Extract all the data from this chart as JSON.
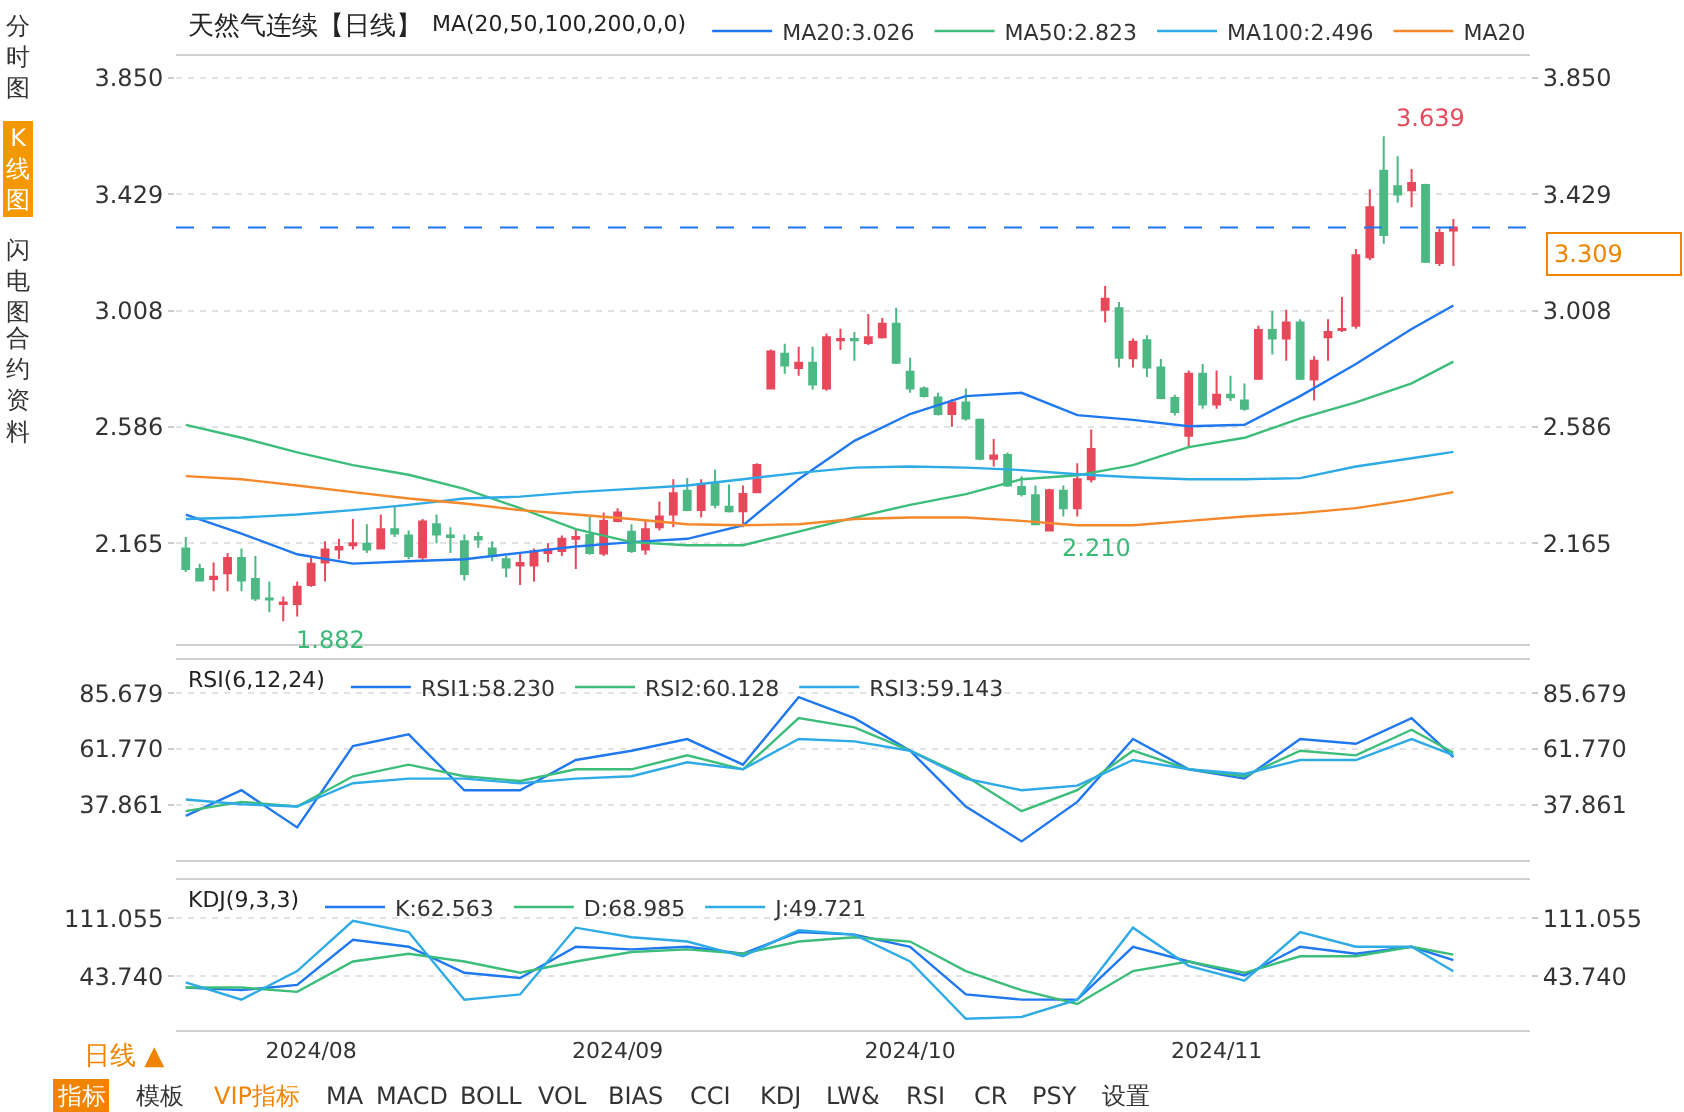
{
  "chart_data": [
    {
      "type": "candlestick",
      "title": "天然气连续【日线】",
      "legend_title": "MA(20,50,100,200,0,0)",
      "legend": "top",
      "grid": "y",
      "tick_labels": "y",
      "categories": [
        null,
        null,
        null,
        null,
        null,
        null,
        null,
        null,
        null,
        null,
        null,
        null,
        null,
        null,
        null,
        null,
        null,
        null,
        null,
        null,
        null,
        null,
        null,
        null,
        null,
        null,
        null,
        null,
        null,
        null,
        null,
        null,
        null,
        null,
        null,
        null,
        null,
        null,
        null,
        null,
        null,
        null,
        null,
        null,
        null,
        null,
        null,
        null,
        null,
        null,
        null,
        null,
        null,
        null,
        null,
        null,
        null,
        null,
        null,
        null,
        null,
        null,
        null,
        null,
        null,
        null,
        null,
        null,
        null,
        null,
        null,
        null,
        null,
        null,
        null,
        null,
        null,
        null,
        null,
        null,
        null,
        null,
        null,
        null,
        null,
        null,
        null,
        null,
        null,
        null,
        null,
        null
      ],
      "ohlc": [
        [
          2.146,
          2.188,
          2.061,
          2.072
        ],
        [
          2.072,
          2.091,
          2.026,
          2.03
        ],
        [
          2.035,
          2.095,
          1.991,
          2.044
        ],
        [
          2.056,
          2.13,
          1.991,
          2.112
        ],
        [
          2.112,
          2.146,
          1.991,
          2.03
        ],
        [
          2.035,
          2.119,
          1.956,
          1.965
        ],
        [
          1.965,
          2.026,
          1.915,
          1.961
        ],
        [
          1.945,
          1.972,
          1.882,
          1.95
        ],
        [
          1.945,
          2.026,
          1.9,
          2.007
        ],
        [
          2.014,
          2.119,
          2.007,
          2.091
        ],
        [
          2.095,
          2.172,
          2.026,
          2.142
        ],
        [
          2.142,
          2.181,
          2.107,
          2.151
        ],
        [
          2.158,
          2.253,
          2.142,
          2.165
        ],
        [
          2.163,
          2.234,
          2.13,
          2.142
        ],
        [
          2.146,
          2.269,
          2.142,
          2.216
        ],
        [
          2.216,
          2.297,
          2.188,
          2.2
        ],
        [
          2.193,
          2.211,
          2.107,
          2.119
        ],
        [
          2.114,
          2.253,
          2.1,
          2.244
        ],
        [
          2.234,
          2.269,
          2.165,
          2.197
        ],
        [
          2.193,
          2.223,
          2.13,
          2.188
        ],
        [
          2.172,
          2.197,
          2.03,
          2.054
        ],
        [
          2.188,
          2.207,
          2.149,
          2.179
        ],
        [
          2.146,
          2.172,
          2.1,
          2.119
        ],
        [
          2.107,
          2.119,
          2.042,
          2.077
        ],
        [
          2.084,
          2.13,
          2.014,
          2.093
        ],
        [
          2.084,
          2.146,
          2.026,
          2.135
        ],
        [
          2.13,
          2.165,
          2.096,
          2.142
        ],
        [
          2.137,
          2.193,
          2.119,
          2.181
        ],
        [
          2.181,
          2.216,
          2.072,
          2.188
        ],
        [
          2.195,
          2.262,
          2.123,
          2.13
        ],
        [
          2.128,
          2.276,
          2.119,
          2.246
        ],
        [
          2.246,
          2.292,
          2.241,
          2.276
        ],
        [
          2.207,
          2.234,
          2.13,
          2.137
        ],
        [
          2.142,
          2.246,
          2.123,
          2.216
        ],
        [
          2.223,
          2.316,
          2.211,
          2.262
        ],
        [
          2.269,
          2.397,
          2.223,
          2.346
        ],
        [
          2.355,
          2.401,
          2.281,
          2.285
        ],
        [
          2.285,
          2.397,
          2.258,
          2.38
        ],
        [
          2.38,
          2.432,
          2.292,
          2.304
        ],
        [
          2.297,
          2.378,
          2.276,
          2.281
        ],
        [
          2.281,
          2.374,
          2.223,
          2.343
        ],
        [
          2.35,
          2.455,
          2.346,
          2.448
        ],
        [
          2.726,
          2.867,
          2.726,
          2.86
        ],
        [
          2.851,
          2.888,
          2.779,
          2.809
        ],
        [
          2.8,
          2.877,
          2.772,
          2.819
        ],
        [
          2.819,
          2.877,
          2.721,
          2.74
        ],
        [
          2.726,
          2.925,
          2.717,
          2.911
        ],
        [
          2.9,
          2.942,
          2.865,
          2.905
        ],
        [
          2.905,
          2.93,
          2.826,
          2.9
        ],
        [
          2.89,
          2.995,
          2.883,
          2.911
        ],
        [
          2.911,
          2.981,
          2.907,
          2.96
        ],
        [
          2.96,
          3.018,
          2.814,
          2.819
        ],
        [
          2.786,
          2.837,
          2.71,
          2.726
        ],
        [
          2.726,
          2.733,
          2.693,
          2.698
        ],
        [
          2.693,
          2.71,
          2.628,
          2.633
        ],
        [
          2.633,
          2.687,
          2.587,
          2.675
        ],
        [
          2.675,
          2.726,
          2.61,
          2.617
        ],
        [
          2.612,
          2.617,
          2.466,
          2.471
        ],
        [
          2.471,
          2.543,
          2.443,
          2.483
        ],
        [
          2.485,
          2.494,
          2.369,
          2.374
        ],
        [
          2.369,
          2.408,
          2.334,
          2.343
        ],
        [
          2.339,
          2.374,
          2.23,
          2.234
        ],
        [
          2.211,
          2.362,
          2.21,
          2.357
        ],
        [
          2.355,
          2.374,
          2.262,
          2.292
        ],
        [
          2.292,
          2.455,
          2.262,
          2.397
        ],
        [
          2.397,
          2.577,
          2.385,
          2.506
        ],
        [
          3.011,
          3.097,
          2.965,
          3.051
        ],
        [
          3.016,
          3.039,
          2.802,
          2.837
        ],
        [
          2.835,
          2.907,
          2.802,
          2.895
        ],
        [
          2.9,
          2.918,
          2.767,
          2.802
        ],
        [
          2.802,
          2.832,
          2.687,
          2.691
        ],
        [
          2.691,
          2.703,
          2.628,
          2.64
        ],
        [
          2.554,
          2.791,
          2.513,
          2.779
        ],
        [
          2.779,
          2.814,
          2.652,
          2.668
        ],
        [
          2.668,
          2.791,
          2.652,
          2.703
        ],
        [
          2.703,
          2.772,
          2.68,
          2.694
        ],
        [
          2.682,
          2.744,
          2.645,
          2.652
        ],
        [
          2.761,
          2.953,
          2.756,
          2.937
        ],
        [
          2.937,
          3.006,
          2.849,
          2.907
        ],
        [
          2.907,
          3.011,
          2.826,
          2.965
        ],
        [
          2.965,
          2.976,
          2.756,
          2.761
        ],
        [
          2.758,
          2.842,
          2.682,
          2.826
        ],
        [
          2.911,
          2.976,
          2.826,
          2.93
        ],
        [
          2.937,
          3.057,
          2.93,
          2.941
        ],
        [
          2.953,
          3.231,
          2.942,
          3.208
        ],
        [
          3.201,
          3.447,
          3.19,
          3.382
        ],
        [
          3.514,
          3.639,
          3.25,
          3.282
        ],
        [
          3.458,
          3.567,
          3.398,
          3.428
        ],
        [
          3.444,
          3.521,
          3.382,
          3.47
        ],
        [
          3.463,
          3.467,
          3.18,
          3.185
        ],
        [
          3.18,
          3.305,
          3.169,
          3.289
        ],
        [
          3.298,
          3.34,
          3.169,
          3.309
        ]
      ],
      "colors": [
        "#4cb884",
        "#4cb884",
        "#e8485a",
        "#e8485a",
        "#4cb884",
        "#4cb884",
        "#4cb884",
        "#e8485a",
        "#e8485a",
        "#e8485a",
        "#e8485a",
        "#e8485a",
        "#e8485a",
        "#4cb884",
        "#e8485a",
        "#4cb884",
        "#4cb884",
        "#e8485a",
        "#4cb884",
        "#4cb884",
        "#4cb884",
        "#4cb884",
        "#4cb884",
        "#4cb884",
        "#e8485a",
        "#e8485a",
        "#e8485a",
        "#e8485a",
        "#e8485a",
        "#4cb884",
        "#e8485a",
        "#e8485a",
        "#4cb884",
        "#e8485a",
        "#e8485a",
        "#e8485a",
        "#4cb884",
        "#e8485a",
        "#4cb884",
        "#4cb884",
        "#e8485a",
        "#e8485a",
        "#e8485a",
        "#4cb884",
        "#e8485a",
        "#4cb884",
        "#e8485a",
        "#e8485a",
        "#4cb884",
        "#e8485a",
        "#e8485a",
        "#4cb884",
        "#4cb884",
        "#4cb884",
        "#4cb884",
        "#e8485a",
        "#4cb884",
        "#4cb884",
        "#e8485a",
        "#4cb884",
        "#4cb884",
        "#4cb884",
        "#e8485a",
        "#4cb884",
        "#e8485a",
        "#e8485a",
        "#e8485a",
        "#4cb884",
        "#e8485a",
        "#4cb884",
        "#4cb884",
        "#4cb884",
        "#e8485a",
        "#4cb884",
        "#e8485a",
        "#4cb884",
        "#4cb884",
        "#e8485a",
        "#4cb884",
        "#e8485a",
        "#4cb884",
        "#e8485a",
        "#e8485a",
        "#e8485a",
        "#e8485a",
        "#e8485a",
        "#4cb884",
        "#4cb884",
        "#e8485a",
        "#4cb884",
        "#e8485a",
        "#e8485a"
      ],
      "series": [
        {
          "type": "line",
          "name": "MA20:3.026",
          "color": "#1f78f0",
          "values": [
            2.269,
            null,
            null,
            null,
            2.2,
            null,
            null,
            null,
            2.125,
            null,
            null,
            null,
            2.091,
            null,
            null,
            null,
            2.1,
            null,
            null,
            null,
            2.107,
            null,
            null,
            null,
            2.13,
            null,
            null,
            null,
            2.153,
            null,
            null,
            null,
            2.169,
            null,
            null,
            null,
            2.181,
            null,
            null,
            null,
            2.23,
            null,
            null,
            null,
            2.397,
            null,
            null,
            null,
            2.536,
            null,
            null,
            null,
            2.633,
            null,
            null,
            null,
            2.698,
            null,
            null,
            null,
            2.71,
            null,
            null,
            null,
            2.629,
            null,
            null,
            null,
            2.612,
            null,
            null,
            null,
            2.589,
            null,
            null,
            null,
            2.594,
            null,
            null,
            null,
            2.698,
            null,
            null,
            null,
            2.814,
            null,
            null,
            null,
            2.941,
            null,
            null,
            3.026
          ]
        },
        {
          "type": "line",
          "name": "MA50:2.823",
          "color": "#3cbd7a",
          "values": [
            2.594,
            null,
            null,
            null,
            2.547,
            null,
            null,
            null,
            2.494,
            null,
            null,
            null,
            2.448,
            null,
            null,
            null,
            2.413,
            null,
            null,
            null,
            2.362,
            null,
            null,
            null,
            2.292,
            null,
            null,
            null,
            2.216,
            null,
            null,
            null,
            2.169,
            null,
            null,
            null,
            2.158,
            null,
            null,
            null,
            2.158,
            null,
            null,
            null,
            2.207,
            null,
            null,
            null,
            2.258,
            null,
            null,
            null,
            2.304,
            null,
            null,
            null,
            2.343,
            null,
            null,
            null,
            2.397,
            null,
            null,
            null,
            2.411,
            null,
            null,
            null,
            2.448,
            null,
            null,
            null,
            2.513,
            null,
            null,
            null,
            2.547,
            null,
            null,
            null,
            2.617,
            null,
            null,
            null,
            2.675,
            null,
            null,
            null,
            2.744,
            null,
            null,
            2.823
          ]
        },
        {
          "type": "line",
          "name": "MA100:2.496",
          "color": "#2eaae6",
          "values": [
            2.253,
            null,
            null,
            null,
            2.258,
            null,
            null,
            null,
            2.269,
            null,
            null,
            null,
            2.285,
            null,
            null,
            null,
            2.304,
            null,
            null,
            null,
            2.327,
            null,
            null,
            null,
            2.334,
            null,
            null,
            null,
            2.35,
            null,
            null,
            null,
            2.362,
            null,
            null,
            null,
            2.374,
            null,
            null,
            null,
            2.397,
            null,
            null,
            null,
            2.42,
            null,
            null,
            null,
            2.439,
            null,
            null,
            null,
            2.443,
            null,
            null,
            null,
            2.439,
            null,
            null,
            null,
            2.43,
            null,
            null,
            null,
            2.415,
            null,
            null,
            null,
            2.404,
            null,
            null,
            null,
            2.397,
            null,
            null,
            null,
            2.397,
            null,
            null,
            null,
            2.401,
            null,
            null,
            null,
            2.443,
            null,
            null,
            null,
            2.473,
            null,
            null,
            2.496
          ]
        },
        {
          "type": "line",
          "name": "MA20",
          "color": "#f5882a",
          "values": [
            2.408,
            null,
            null,
            null,
            2.397,
            null,
            null,
            null,
            2.374,
            null,
            null,
            null,
            2.35,
            null,
            null,
            null,
            2.327,
            null,
            null,
            null,
            2.309,
            null,
            null,
            null,
            2.285,
            null,
            null,
            null,
            2.269,
            null,
            null,
            null,
            2.253,
            null,
            null,
            null,
            2.234,
            null,
            null,
            null,
            2.23,
            null,
            null,
            null,
            2.234,
            null,
            null,
            null,
            2.253,
            null,
            null,
            null,
            2.258,
            null,
            null,
            null,
            2.258,
            null,
            null,
            null,
            2.246,
            null,
            null,
            null,
            2.23,
            null,
            null,
            null,
            2.23,
            null,
            null,
            null,
            2.246,
            null,
            null,
            null,
            2.262,
            null,
            null,
            null,
            2.274,
            null,
            null,
            null,
            2.292,
            null,
            null,
            null,
            2.323,
            null,
            null,
            2.35
          ]
        }
      ],
      "ylim": [
        1.8,
        3.93
      ],
      "yticks": [
        {
          "value": 3.85,
          "label": "3.850"
        },
        3.429,
        3.008,
        2.586,
        2.165
      ],
      "y2lim": [
        1.8,
        3.93
      ],
      "y2ticks": [
        {
          "value": 3.85,
          "label": "3.850"
        },
        3.429,
        3.008,
        2.586,
        2.165
      ],
      "ref_lines": [
        {
          "axis": "y",
          "value": 3.309,
          "label": "3.309",
          "color": "#1f78f0",
          "line_style": "dashed"
        }
      ],
      "annotations": [
        "3.639",
        "1.882",
        {
          "text": "2.210",
          "y": 2.21
        },
        "分时图",
        "K线图",
        "闪电图",
        "合约资料",
        "日线 ▲",
        "指标",
        "模板",
        "VIP指标",
        "MA",
        "MACD",
        "BOLL",
        "VOL",
        "BIAS",
        "CCI",
        "KDJ",
        "LW&",
        "RSI",
        "CR",
        "PSY",
        "设置"
      ]
    },
    {
      "type": "line",
      "legend_title": "RSI(6,12,24)",
      "legend": "top left",
      "grid": "y",
      "tick_labels": "y",
      "categories": [
        null,
        null,
        null,
        null,
        null,
        null,
        null,
        null,
        null,
        null,
        null,
        null,
        null,
        null,
        null,
        null,
        null,
        null,
        null,
        null,
        null,
        null,
        null,
        null,
        null,
        null,
        null,
        null,
        null,
        null,
        null,
        null,
        null,
        null,
        null,
        null,
        null,
        null,
        null,
        null,
        null,
        null,
        null,
        null,
        null,
        null,
        null,
        null,
        null,
        null,
        null,
        null,
        null,
        null,
        null,
        null,
        null,
        null,
        null,
        null,
        null,
        null,
        null,
        null,
        null,
        null,
        null,
        null,
        null,
        null,
        null,
        null,
        null,
        null,
        null,
        null,
        null,
        null,
        null,
        null,
        null,
        null,
        null,
        null,
        null,
        null,
        null,
        null,
        null,
        null,
        null,
        null
      ],
      "series": [
        {
          "name": "RSI1:58.230",
          "color": "#1f78f0",
          "values": [
            33,
            null,
            null,
            null,
            44,
            null,
            null,
            null,
            28,
            null,
            null,
            null,
            63,
            null,
            null,
            null,
            68,
            null,
            null,
            null,
            44,
            null,
            null,
            null,
            44,
            null,
            null,
            null,
            57,
            null,
            null,
            null,
            61,
            null,
            null,
            null,
            66,
            null,
            null,
            null,
            55,
            null,
            null,
            null,
            84,
            null,
            null,
            null,
            75,
            null,
            null,
            null,
            61,
            null,
            null,
            null,
            37,
            null,
            null,
            null,
            22,
            null,
            null,
            null,
            39,
            null,
            null,
            null,
            66,
            null,
            null,
            null,
            53,
            null,
            null,
            null,
            49,
            null,
            null,
            null,
            66,
            null,
            null,
            null,
            64,
            null,
            null,
            null,
            75,
            null,
            null,
            58.23
          ]
        },
        {
          "name": "RSI2:60.128",
          "color": "#3cbd7a",
          "values": [
            35,
            null,
            null,
            null,
            39,
            null,
            null,
            null,
            37,
            null,
            null,
            null,
            50,
            null,
            null,
            null,
            55,
            null,
            null,
            null,
            50,
            null,
            null,
            null,
            48,
            null,
            null,
            null,
            53,
            null,
            null,
            null,
            53,
            null,
            null,
            null,
            59,
            null,
            null,
            null,
            53,
            null,
            null,
            null,
            75,
            null,
            null,
            null,
            71,
            null,
            null,
            null,
            61,
            null,
            null,
            null,
            50,
            null,
            null,
            null,
            35,
            null,
            null,
            null,
            44,
            null,
            null,
            null,
            61,
            null,
            null,
            null,
            53,
            null,
            null,
            null,
            50,
            null,
            null,
            null,
            61,
            null,
            null,
            null,
            59,
            null,
            null,
            null,
            70,
            null,
            null,
            60.128
          ]
        },
        {
          "name": "RSI3:59.143",
          "color": "#2eaae6",
          "values": [
            40,
            null,
            null,
            null,
            38,
            null,
            null,
            null,
            37,
            null,
            null,
            null,
            47,
            null,
            null,
            null,
            49,
            null,
            null,
            null,
            49,
            null,
            null,
            null,
            47,
            null,
            null,
            null,
            49,
            null,
            null,
            null,
            50,
            null,
            null,
            null,
            56,
            null,
            null,
            null,
            53,
            null,
            null,
            null,
            66,
            null,
            null,
            null,
            65,
            null,
            null,
            null,
            61,
            null,
            null,
            null,
            49,
            null,
            null,
            null,
            44,
            null,
            null,
            null,
            46,
            null,
            null,
            null,
            57,
            null,
            null,
            null,
            53,
            null,
            null,
            null,
            51,
            null,
            null,
            null,
            57,
            null,
            null,
            null,
            57,
            null,
            null,
            null,
            66,
            null,
            null,
            59.143
          ]
        }
      ],
      "ylim": [
        14,
        100
      ],
      "yticks": [
        85.679,
        {
          "value": 61.77,
          "label": "61.770"
        },
        37.861
      ],
      "y2lim": [
        14,
        100
      ],
      "y2ticks": [
        85.679,
        {
          "value": 61.77,
          "label": "61.770"
        },
        37.861
      ]
    },
    {
      "type": "line",
      "legend_title": "KDJ(9,3,3)",
      "legend": "top left",
      "grid": "y",
      "categories": [
        null,
        null,
        null,
        null,
        null,
        null,
        null,
        null,
        null,
        "2024/08",
        null,
        null,
        null,
        null,
        null,
        null,
        null,
        null,
        null,
        null,
        null,
        null,
        null,
        null,
        null,
        null,
        null,
        null,
        null,
        null,
        null,
        "2024/09",
        null,
        null,
        null,
        null,
        null,
        null,
        null,
        null,
        null,
        null,
        null,
        null,
        null,
        null,
        null,
        null,
        null,
        null,
        null,
        null,
        "2024/10",
        null,
        null,
        null,
        null,
        null,
        null,
        null,
        null,
        null,
        null,
        null,
        null,
        null,
        null,
        null,
        null,
        null,
        null,
        null,
        null,
        null,
        "2024/11",
        null,
        null,
        null,
        null,
        null,
        null,
        null,
        null,
        null,
        null,
        null,
        null,
        null,
        null,
        null,
        null,
        null
      ],
      "series": [
        {
          "name": "K:62.563",
          "color": "#1f78f0",
          "values": [
            31,
            null,
            null,
            null,
            28,
            null,
            null,
            null,
            34,
            null,
            null,
            null,
            86,
            null,
            null,
            null,
            78,
            null,
            null,
            null,
            48,
            null,
            null,
            null,
            42,
            null,
            null,
            null,
            78,
            null,
            null,
            null,
            75,
            null,
            null,
            null,
            78,
            null,
            null,
            null,
            70,
            null,
            null,
            null,
            95,
            null,
            null,
            null,
            92,
            null,
            null,
            null,
            78,
            null,
            null,
            null,
            23,
            null,
            null,
            null,
            17,
            null,
            null,
            null,
            17,
            null,
            null,
            null,
            78,
            null,
            null,
            null,
            61,
            null,
            null,
            null,
            45,
            null,
            null,
            null,
            78,
            null,
            null,
            null,
            70,
            null,
            null,
            null,
            78,
            null,
            null,
            62.563
          ]
        },
        {
          "name": "D:68.985",
          "color": "#3cbd7a",
          "values": [
            31,
            null,
            null,
            null,
            31,
            null,
            null,
            null,
            26,
            null,
            null,
            null,
            61,
            null,
            null,
            null,
            70,
            null,
            null,
            null,
            61,
            null,
            null,
            null,
            48,
            null,
            null,
            null,
            61,
            null,
            null,
            null,
            72,
            null,
            null,
            null,
            75,
            null,
            null,
            null,
            70,
            null,
            null,
            null,
            84,
            null,
            null,
            null,
            89,
            null,
            null,
            null,
            84,
            null,
            null,
            null,
            50,
            null,
            null,
            null,
            28,
            null,
            null,
            null,
            12,
            null,
            null,
            null,
            50,
            null,
            null,
            null,
            61,
            null,
            null,
            null,
            48,
            null,
            null,
            null,
            67,
            null,
            null,
            null,
            67,
            null,
            null,
            null,
            78,
            null,
            null,
            68.985
          ]
        },
        {
          "name": "J:49.721",
          "color": "#2eaae6",
          "values": [
            37,
            null,
            null,
            null,
            17,
            null,
            null,
            null,
            50,
            null,
            null,
            null,
            108,
            null,
            null,
            null,
            95,
            null,
            null,
            null,
            17,
            null,
            null,
            null,
            23,
            null,
            null,
            null,
            100,
            null,
            null,
            null,
            89,
            null,
            null,
            null,
            84,
            null,
            null,
            null,
            67,
            null,
            null,
            null,
            97,
            null,
            null,
            null,
            92,
            null,
            null,
            null,
            61,
            null,
            null,
            null,
            -5,
            null,
            null,
            null,
            -3,
            null,
            null,
            null,
            17,
            null,
            null,
            null,
            100,
            null,
            null,
            null,
            56,
            null,
            null,
            null,
            39,
            null,
            null,
            null,
            95,
            null,
            null,
            null,
            78,
            null,
            null,
            null,
            78,
            null,
            null,
            49.721
          ]
        }
      ],
      "ylim": [
        -18,
        155
      ],
      "yticks": [
        111.055,
        {
          "value": 43.74,
          "label": "43.740"
        }
      ],
      "y2lim": [
        -18,
        155
      ],
      "y2ticks": [
        111.055,
        {
          "value": 43.74,
          "label": "43.740"
        }
      ]
    }
  ]
}
